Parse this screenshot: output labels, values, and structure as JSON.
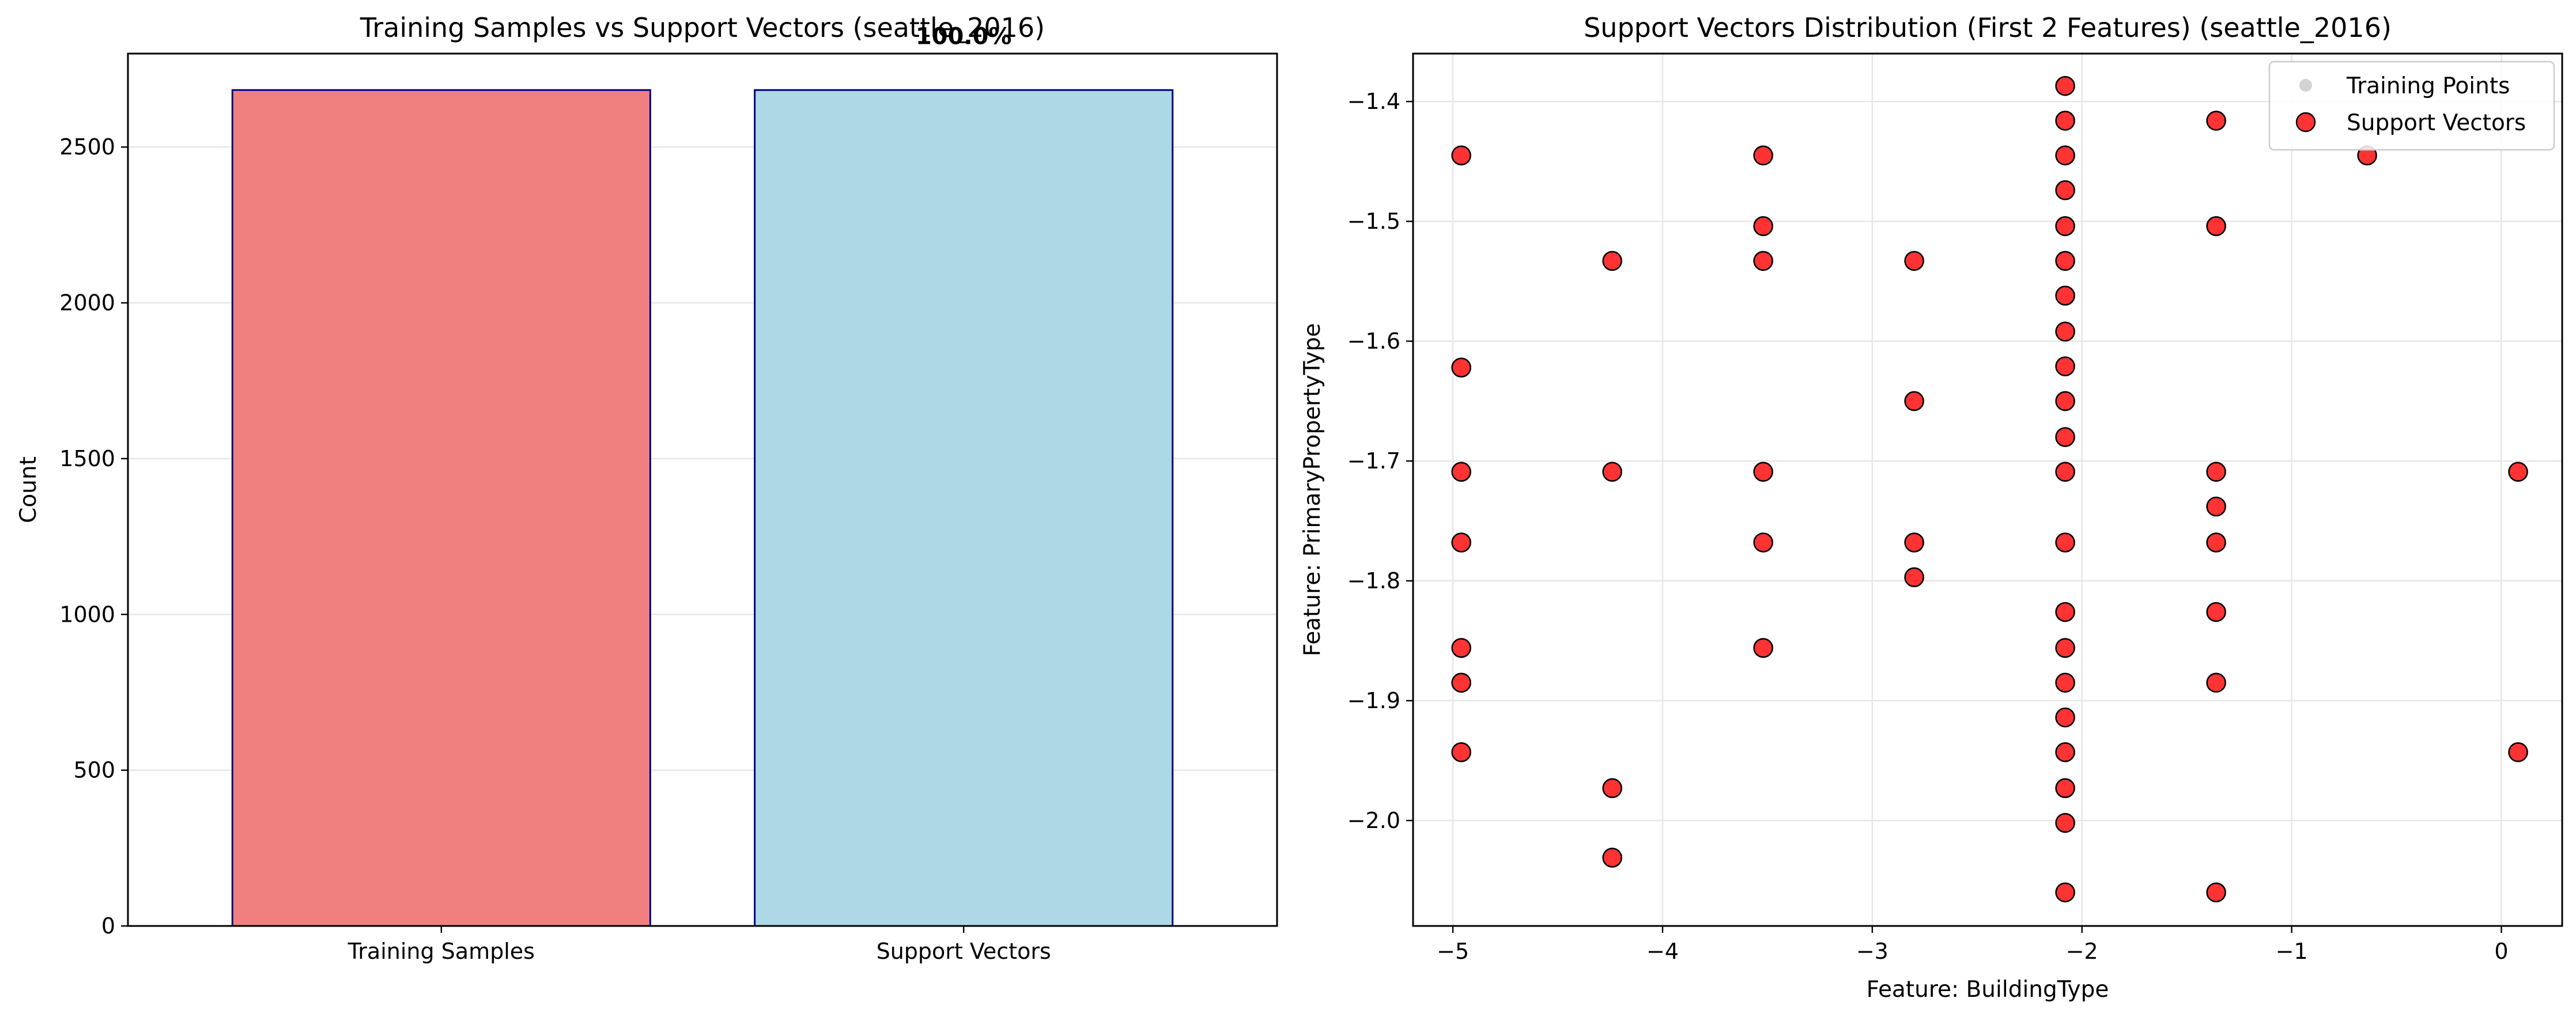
{
  "chart_data": [
    {
      "type": "bar",
      "title": "Training Samples vs Support Vectors (seattle_2016)",
      "xlabel": "",
      "ylabel": "Count",
      "categories": [
        "Training Samples",
        "Support Vectors"
      ],
      "values": [
        2683,
        2683
      ],
      "colors": [
        "#f08080",
        "#add8e6"
      ],
      "edge_color": "#00008b",
      "ylim": [
        0,
        2800
      ],
      "yticks": [
        0,
        500,
        1000,
        1500,
        2000,
        2500
      ],
      "annotation": "100.0%",
      "grid": true
    },
    {
      "type": "scatter",
      "title": "Support Vectors Distribution (First 2 Features) (seattle_2016)",
      "xlabel": "Feature: BuildingType",
      "ylabel": "Feature: PrimaryPropertyType",
      "xlim": [
        -5.19,
        0.29
      ],
      "ylim": [
        -2.088,
        -1.36
      ],
      "xticks": [
        -5,
        -4,
        -3,
        -2,
        -1,
        0
      ],
      "yticks": [
        -2.0,
        -1.9,
        -1.8,
        -1.7,
        -1.6,
        -1.5,
        -1.4
      ],
      "grid": true,
      "legend_position": "top-right",
      "series": [
        {
          "name": "Training Points",
          "color": "#d3d3d3",
          "points": []
        },
        {
          "name": "Support Vectors",
          "color": "#ff0000",
          "edge_color": "#000000",
          "points": [
            [
              -4.96,
              -1.445
            ],
            [
              -4.96,
              -1.622
            ],
            [
              -4.96,
              -1.709
            ],
            [
              -4.96,
              -1.768
            ],
            [
              -4.96,
              -1.856
            ],
            [
              -4.96,
              -1.885
            ],
            [
              -4.96,
              -1.943
            ],
            [
              -4.24,
              -1.533
            ],
            [
              -4.24,
              -1.709
            ],
            [
              -4.24,
              -1.973
            ],
            [
              -4.24,
              -2.031
            ],
            [
              -3.52,
              -1.445
            ],
            [
              -3.52,
              -1.504
            ],
            [
              -3.52,
              -1.533
            ],
            [
              -3.52,
              -1.709
            ],
            [
              -3.52,
              -1.768
            ],
            [
              -3.52,
              -1.856
            ],
            [
              -2.8,
              -1.533
            ],
            [
              -2.8,
              -1.65
            ],
            [
              -2.8,
              -1.768
            ],
            [
              -2.8,
              -1.797
            ],
            [
              -2.08,
              -1.387
            ],
            [
              -2.08,
              -1.416
            ],
            [
              -2.08,
              -1.445
            ],
            [
              -2.08,
              -1.474
            ],
            [
              -2.08,
              -1.504
            ],
            [
              -2.08,
              -1.533
            ],
            [
              -2.08,
              -1.562
            ],
            [
              -2.08,
              -1.592
            ],
            [
              -2.08,
              -1.621
            ],
            [
              -2.08,
              -1.65
            ],
            [
              -2.08,
              -1.68
            ],
            [
              -2.08,
              -1.709
            ],
            [
              -2.08,
              -1.768
            ],
            [
              -2.08,
              -1.826
            ],
            [
              -2.08,
              -1.856
            ],
            [
              -2.08,
              -1.885
            ],
            [
              -2.08,
              -1.914
            ],
            [
              -2.08,
              -1.943
            ],
            [
              -2.08,
              -1.973
            ],
            [
              -2.08,
              -2.002
            ],
            [
              -2.08,
              -2.06
            ],
            [
              -1.36,
              -1.416
            ],
            [
              -1.36,
              -1.504
            ],
            [
              -1.36,
              -1.709
            ],
            [
              -1.36,
              -1.738
            ],
            [
              -1.36,
              -1.768
            ],
            [
              -1.36,
              -1.826
            ],
            [
              -1.36,
              -1.885
            ],
            [
              -1.36,
              -2.06
            ],
            [
              -0.64,
              -1.445
            ],
            [
              0.08,
              -1.709
            ],
            [
              0.08,
              -1.943
            ]
          ]
        }
      ]
    }
  ]
}
